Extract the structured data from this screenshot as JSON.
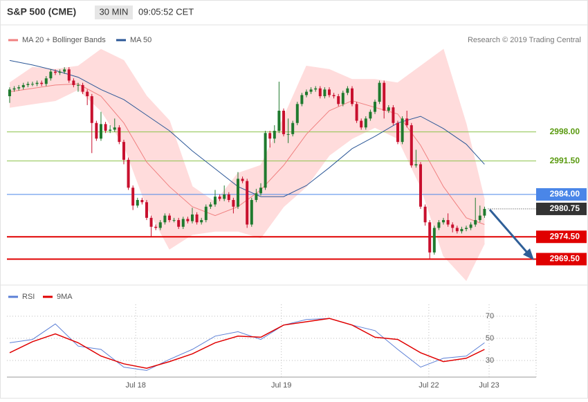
{
  "chart_data": [
    {
      "type": "candlestick",
      "title": "S&P 500 (CME)",
      "timeframe": "30 MIN",
      "time": "09:05:52 CET",
      "source": "Research © 2019 Trading Central",
      "up_color": "#1f7a2e",
      "down_color": "#c8102e",
      "xlim": [
        -0.6,
        115.3
      ],
      "ylim": [
        2964,
        3018.25
      ],
      "x": [
        0,
        1,
        2,
        3,
        4,
        5,
        6,
        7,
        8,
        9,
        10,
        11,
        12,
        13,
        14,
        15,
        16,
        17,
        18,
        19,
        20,
        21,
        22,
        23,
        24,
        25,
        26,
        27,
        28,
        29,
        30,
        31,
        32,
        33,
        34,
        35,
        36,
        37,
        38,
        39,
        40,
        41,
        42,
        43,
        44,
        45,
        46,
        47,
        48,
        49,
        50,
        51,
        52,
        53,
        54,
        55,
        56,
        57,
        58,
        59,
        60,
        61,
        62,
        63,
        64,
        65,
        66,
        67,
        68,
        69,
        70,
        71,
        72,
        73,
        74,
        75,
        76,
        77,
        78,
        79,
        80,
        81,
        82,
        83,
        84,
        85,
        86,
        87,
        88,
        89,
        90,
        91,
        92,
        93,
        94,
        95,
        96,
        97,
        98,
        99,
        100,
        101,
        102,
        103,
        104
      ],
      "open": [
        3006,
        3007.5,
        3007.75,
        3008,
        3008.5,
        3008.75,
        3008.75,
        3009,
        3008.75,
        3010,
        3011.5,
        3011.25,
        3011.5,
        3012,
        3009.5,
        3008.5,
        3008.5,
        3007,
        3006,
        3000,
        2996.5,
        2999.75,
        2998.25,
        2998.5,
        2999,
        2995.75,
        2991.75,
        2985.5,
        2981.5,
        2982.75,
        2982.25,
        2978.75,
        2976.75,
        2976.5,
        2977.75,
        2979.25,
        2978.25,
        2978.25,
        2976.75,
        2978.5,
        2978,
        2979.5,
        2977.75,
        2978.25,
        2981.25,
        2981.75,
        2983.5,
        2983,
        2984,
        2982.75,
        2981.25,
        2987.5,
        2987,
        2977.25,
        2982.75,
        2984.25,
        2985.5,
        2997.75,
        2996.5,
        2998.25,
        3002.75,
        2997.5,
        2997.5,
        3000,
        3004.25,
        3006.25,
        3007,
        3007.5,
        3007.75,
        3006,
        3007.5,
        3006.25,
        3006,
        3004.25,
        3006.75,
        3007.75,
        3004.25,
        3000.5,
        2999,
        3001,
        3002.5,
        3004.75,
        3009,
        3002.75,
        3003.5,
        3000,
        2995.75,
        3001,
        2999.5,
        2990.5,
        2990.75,
        2981.25,
        2977.75,
        2971,
        2976.5,
        2977.75,
        2978.25,
        2977.25,
        2976.5,
        2975.75,
        2976.25,
        2976.5,
        2977.25,
        2978.25,
        2979.25
      ],
      "high": [
        3008,
        3008.25,
        3008.5,
        3009,
        3009.25,
        3009.25,
        3009.5,
        3009.5,
        3010.5,
        3012,
        3012,
        3012,
        3012.5,
        3012.5,
        3010,
        3009,
        3009,
        3007.5,
        3006.5,
        3000.5,
        3002.5,
        3000.25,
        2999.5,
        3001,
        2999.5,
        2996.25,
        2992.25,
        2986,
        2983.25,
        2983.25,
        2982.75,
        2979.25,
        2977.25,
        2978.25,
        2979.75,
        2979.75,
        2978.75,
        2978.75,
        2979,
        2979,
        2981,
        2980,
        2978.75,
        2981.75,
        2982.25,
        2985,
        2984,
        2986,
        2984.5,
        2983.25,
        2989,
        2988,
        2987.5,
        2983.25,
        2985.25,
        2986.5,
        2998.25,
        2998.25,
        2999.5,
        3009.25,
        3003.25,
        3001,
        3000.5,
        3004.75,
        3006.75,
        3007.5,
        3008,
        3008.25,
        3008.25,
        3008,
        3008,
        3006.75,
        3006.5,
        3007.25,
        3008.25,
        3008.25,
        3004.75,
        3001,
        3001.5,
        3003,
        3005.25,
        3009.5,
        3009.5,
        3004,
        3004,
        3000.5,
        3001.5,
        3002.75,
        3000,
        2994,
        2991.25,
        2981.75,
        2978.25,
        2977,
        2978.25,
        2978.75,
        2979.75,
        2977.75,
        2977,
        2976.75,
        2977,
        2977.75,
        2983.25,
        2981.5,
        2981.25
      ],
      "low": [
        3004.5,
        3007,
        3007.25,
        3007.5,
        3008,
        3008.25,
        3008.25,
        3008.25,
        3008.25,
        3009.5,
        3010.75,
        3010.75,
        3011,
        3009,
        3008,
        3007,
        3006.5,
        3004,
        2993.25,
        2996,
        2996,
        2997.75,
        2997.75,
        2998,
        2995.25,
        2990.75,
        2985,
        2980.5,
        2981,
        2981.75,
        2978.25,
        2974.5,
        2976,
        2976,
        2977.25,
        2977.75,
        2977.75,
        2976.25,
        2976.25,
        2977.5,
        2977.5,
        2977.25,
        2977.25,
        2977.75,
        2980.75,
        2981.25,
        2982.5,
        2982.5,
        2982.25,
        2979.75,
        2980.75,
        2986.5,
        2976.5,
        2976.75,
        2982.25,
        2983.75,
        2985,
        2994.5,
        2995.5,
        2997.75,
        2997,
        2995.5,
        2997,
        2999.5,
        3003.75,
        3005.75,
        3006.5,
        3007,
        3005.5,
        3005.5,
        3005.75,
        3005.5,
        3003.75,
        3003.75,
        3006.25,
        3003.75,
        3000,
        2998.5,
        2998.5,
        3000.5,
        3002,
        3004.25,
        3001,
        3002.25,
        2999.5,
        2995.25,
        2995.25,
        2999,
        2990,
        2990,
        2980.75,
        2977,
        2969.5,
        2970.5,
        2976,
        2977.25,
        2976.75,
        2975.5,
        2975.25,
        2975.25,
        2975.75,
        2976,
        2976.75,
        2977.75,
        2978.75
      ],
      "close": [
        3007.5,
        3007.75,
        3008,
        3008.5,
        3008.75,
        3008.75,
        3009,
        3008.75,
        3010,
        3011.5,
        3011.25,
        3011.5,
        3012,
        3009.5,
        3008.5,
        3008.5,
        3007,
        3006,
        3000,
        2996.5,
        2999.75,
        2998.25,
        2998.5,
        2999,
        2995.75,
        2991.75,
        2985.5,
        2981.5,
        2982.75,
        2982.25,
        2978.75,
        2976.75,
        2976.5,
        2977.75,
        2979.25,
        2978.25,
        2978.25,
        2976.75,
        2978.5,
        2978,
        2979.5,
        2977.75,
        2978.25,
        2981.25,
        2981.75,
        2983.5,
        2983,
        2984,
        2982.75,
        2981.25,
        2987.5,
        2987,
        2977.25,
        2982.75,
        2984.25,
        2985.5,
        2997.75,
        2996.5,
        2998.25,
        3002.75,
        2997.5,
        2997.5,
        3000,
        3004.25,
        3006.25,
        3007,
        3007.5,
        3007.75,
        3006,
        3007.5,
        3006.25,
        3006,
        3004.25,
        3006.75,
        3007.75,
        3004.25,
        3000.5,
        2999,
        3001,
        3002.5,
        3004.75,
        3009,
        3002.75,
        3003.5,
        3000,
        2995.75,
        3001,
        2999.5,
        2990.5,
        2990.75,
        2981.25,
        2977.75,
        2971,
        2976.5,
        2977.75,
        2978.25,
        2977.25,
        2976.5,
        2975.75,
        2976.25,
        2976.5,
        2977.25,
        2978.25,
        2979.25,
        2980.75
      ],
      "series": [
        {
          "name": "MA 20 + Bollinger Bands",
          "color": "#f08080",
          "band_color": "#ffdcdc",
          "x": [
            0,
            5,
            10,
            15,
            20,
            25,
            30,
            35,
            40,
            45,
            50,
            55,
            60,
            65,
            70,
            75,
            80,
            85,
            90,
            95,
            100,
            104
          ],
          "values": [
            3007,
            3007.75,
            3008.5,
            3008.75,
            3006,
            3000,
            2991.25,
            2985.75,
            2981.25,
            2979.25,
            2981.25,
            2985,
            2990.5,
            2997.5,
            3002.75,
            3005,
            3003.5,
            3002,
            2995,
            2985.75,
            2978.75,
            2977.25
          ],
          "upper": [
            3009,
            3012.5,
            3012,
            3012.75,
            3016.5,
            3014,
            3006,
            3000.5,
            2985.75,
            2982.25,
            2988.75,
            2990.5,
            3001.25,
            3012.75,
            3012,
            3009.75,
            3009.75,
            3009,
            3012.75,
            3016.5,
            2999.75,
            2982.75
          ],
          "lower": [
            3003.5,
            3004.25,
            3005,
            3007.5,
            3002.75,
            2995,
            2981.25,
            2971.75,
            2975,
            2975.75,
            2975.75,
            2974.25,
            2981.25,
            2985.75,
            2992.75,
            2996.5,
            2999,
            2996.5,
            2985.75,
            2970.25,
            2964.75,
            2973
          ]
        },
        {
          "name": "MA 50",
          "color": "#2b5797",
          "x": [
            0,
            5,
            10,
            15,
            20,
            25,
            30,
            35,
            40,
            45,
            50,
            55,
            60,
            65,
            70,
            75,
            80,
            85,
            90,
            95,
            100,
            104
          ],
          "values": [
            3014,
            3013,
            3011.75,
            3010.25,
            3007.5,
            3005.25,
            3001.75,
            2998.25,
            2993.75,
            2989.75,
            2985.75,
            2983.5,
            2983.5,
            2986,
            2990,
            2994.25,
            2997,
            3000,
            3001.5,
            2998.75,
            2995.25,
            2990.75
          ]
        }
      ],
      "levels": [
        {
          "value": 2998,
          "label": "2998.00",
          "color": "#8bc34a",
          "text_color": "#5a9a10",
          "box": false,
          "line": "solid"
        },
        {
          "value": 2991.5,
          "label": "2991.50",
          "color": "#8bc34a",
          "text_color": "#5a9a10",
          "box": false,
          "line": "solid"
        },
        {
          "value": 2984,
          "label": "2984.00",
          "color": "#4a86e8",
          "text_color": "#ffffff",
          "box": true,
          "line": "solid"
        },
        {
          "value": 2980.75,
          "label": "2980.75",
          "color": "#333333",
          "text_color": "#ffffff",
          "box": true,
          "line": "dotted"
        },
        {
          "value": 2974.5,
          "label": "2974.50",
          "color": "#e00000",
          "text_color": "#ffffff",
          "box": true,
          "line": "solid"
        },
        {
          "value": 2969.5,
          "label": "2969.50",
          "color": "#e00000",
          "text_color": "#ffffff",
          "box": true,
          "line": "solid"
        }
      ]
    },
    {
      "type": "line",
      "xlim": [
        -0.6,
        115.3
      ],
      "ylim": [
        15,
        90
      ],
      "yticks": [
        30,
        50,
        70
      ],
      "grid": true,
      "xticks": [
        {
          "value": 27.6,
          "label": "Jul 18"
        },
        {
          "value": 59.5,
          "label": "Jul 19"
        },
        {
          "value": 91.8,
          "label": "Jul 22"
        },
        {
          "value": 105,
          "label": "Jul 23"
        }
      ],
      "series": [
        {
          "name": "RSI",
          "color": "#5b7fd6",
          "x": [
            0,
            5,
            10,
            15,
            20,
            25,
            30,
            35,
            40,
            45,
            50,
            55,
            60,
            65,
            70,
            75,
            80,
            85,
            90,
            95,
            100,
            104
          ],
          "values": [
            46,
            49,
            63,
            43,
            40,
            24,
            21,
            31,
            40,
            52,
            56,
            49,
            62,
            67,
            68,
            62,
            57,
            40,
            24,
            32,
            34,
            46
          ]
        },
        {
          "name": "9MA",
          "color": "#e00000",
          "x": [
            0,
            5,
            10,
            15,
            20,
            25,
            30,
            35,
            40,
            45,
            50,
            55,
            60,
            65,
            70,
            75,
            80,
            85,
            90,
            95,
            100,
            104
          ],
          "values": [
            37,
            47,
            54,
            46,
            34,
            27,
            23,
            29,
            36,
            46,
            52,
            51,
            62,
            65,
            68,
            62,
            51,
            49,
            37,
            29,
            32,
            40
          ]
        }
      ]
    }
  ]
}
